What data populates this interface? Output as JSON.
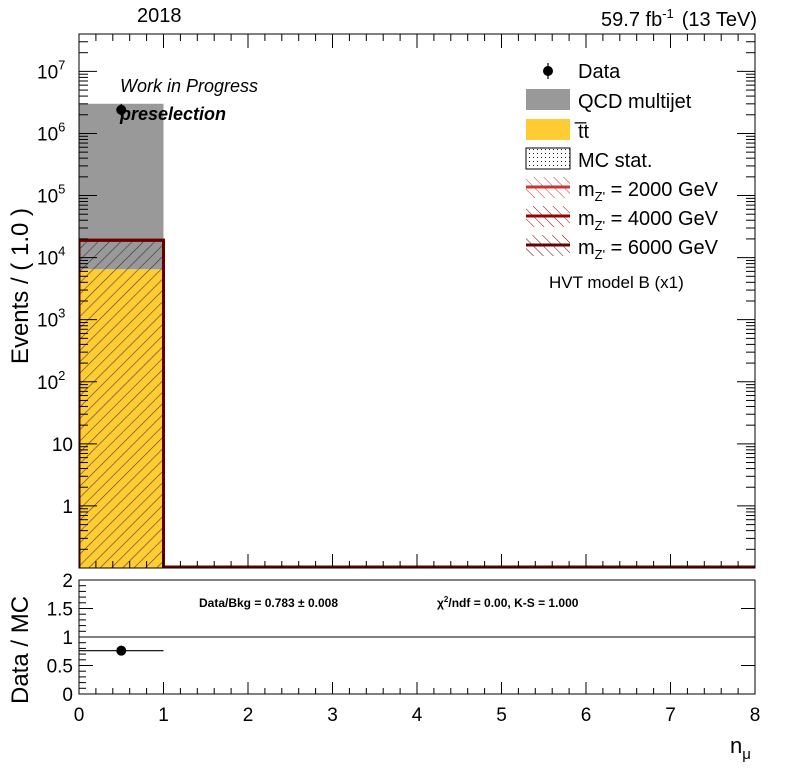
{
  "header": {
    "year": "2018",
    "lumi": "59.7 fb",
    "lumi_sup": "-1",
    "energy": "(13 TeV)"
  },
  "labels": {
    "work_in_progress": "Work in Progress",
    "region": "preselection",
    "model": "HVT model B (x1)"
  },
  "ratio_text": {
    "data_bkg": "Data/Bkg = 0.783 ± 0.008",
    "chi2_a": "χ",
    "chi2_sup": "2",
    "chi2_b": "/ndf = 0.00,   K-S = 1.000"
  },
  "chart_data": [
    {
      "type": "bar",
      "panel": "main",
      "stacked": true,
      "yscale": "log",
      "ylabel": "Events / ( 1.0 )",
      "xlim": [
        0,
        8
      ],
      "ylim": [
        0.1,
        40000000
      ],
      "y_ticks": [
        {
          "label": "1",
          "value": 1
        },
        {
          "label": "10",
          "value": 10
        },
        {
          "label": "10",
          "exp": "2",
          "value": 100
        },
        {
          "label": "10",
          "exp": "3",
          "value": 1000
        },
        {
          "label": "10",
          "exp": "4",
          "value": 10000
        },
        {
          "label": "10",
          "exp": "5",
          "value": 100000
        },
        {
          "label": "10",
          "exp": "6",
          "value": 1000000
        },
        {
          "label": "10",
          "exp": "7",
          "value": 10000000
        }
      ],
      "bins": [
        [
          0,
          1
        ],
        [
          1,
          2
        ],
        [
          2,
          3
        ],
        [
          3,
          4
        ],
        [
          4,
          5
        ],
        [
          5,
          6
        ],
        [
          6,
          7
        ],
        [
          7,
          8
        ]
      ],
      "series": [
        {
          "name": "t̅t",
          "role": "stack",
          "color": "#ffcc33",
          "values": [
            6500,
            0,
            0,
            0,
            0,
            0,
            0,
            0
          ]
        },
        {
          "name": "QCD multijet",
          "role": "stack",
          "color": "#999999",
          "values": [
            3000000,
            0,
            0,
            0,
            0,
            0,
            0,
            0
          ]
        },
        {
          "name": "Data",
          "role": "points",
          "color": "#000000",
          "values": [
            2400000,
            0,
            0,
            0,
            0,
            0,
            0,
            0
          ]
        },
        {
          "name": "m",
          "sub": "Z'",
          "suffix": " = 2000 GeV",
          "role": "signal",
          "color": "#cc3333",
          "values": [
            19000,
            0,
            0,
            0,
            0,
            0,
            0,
            0
          ]
        },
        {
          "name": "m",
          "sub": "Z'",
          "suffix": " = 4000 GeV",
          "role": "signal",
          "color": "#990000",
          "values": [
            19000,
            0,
            0,
            0,
            0,
            0,
            0,
            0
          ]
        },
        {
          "name": "m",
          "sub": "Z'",
          "suffix": " = 6000 GeV",
          "role": "signal",
          "color": "#660000",
          "values": [
            19000,
            0,
            0,
            0,
            0,
            0,
            0,
            0
          ]
        }
      ],
      "mc_stat_band": {
        "name": "MC stat.",
        "low": [
          6500,
          0,
          0,
          0,
          0,
          0,
          0,
          0
        ],
        "high": [
          19000,
          0,
          0,
          0,
          0,
          0,
          0,
          0
        ]
      },
      "legend": {
        "placement": "top-right"
      }
    },
    {
      "type": "scatter",
      "panel": "ratio",
      "ylabel": "Data / MC",
      "xlabel": "n",
      "xlabel_sub": "μ",
      "xlim": [
        0,
        8
      ],
      "ylim": [
        0,
        2
      ],
      "x_ticks": [
        "0",
        "1",
        "2",
        "3",
        "4",
        "5",
        "6",
        "7",
        "8"
      ],
      "y_ticks": [
        "0",
        "0.5",
        "1",
        "1.5",
        "2"
      ],
      "reference_line": 1,
      "points": [
        {
          "x": 0.5,
          "y": 0.76,
          "xerr": 0.5
        }
      ]
    }
  ]
}
